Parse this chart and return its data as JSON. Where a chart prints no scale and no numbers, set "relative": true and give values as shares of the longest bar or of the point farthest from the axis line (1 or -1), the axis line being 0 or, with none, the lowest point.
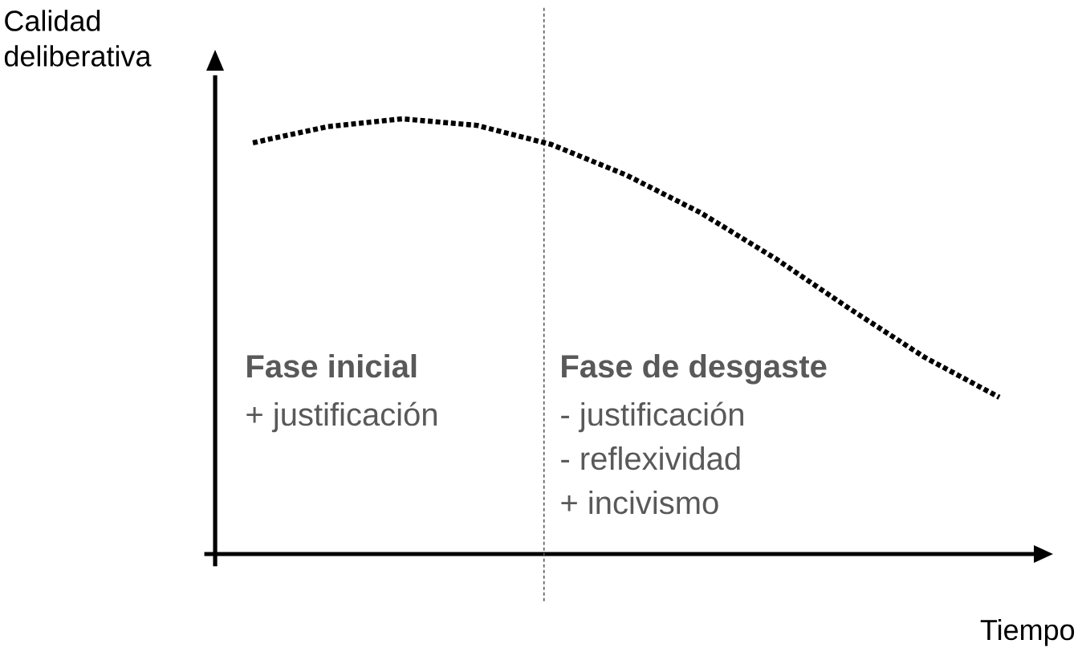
{
  "chart_data": {
    "type": "line",
    "relative": true,
    "ylabel": "Calidad deliberativa",
    "xlabel": "Tiempo",
    "categories": [
      null,
      null,
      null,
      null,
      null,
      null,
      null,
      null,
      null,
      null,
      null
    ],
    "series": [
      {
        "color": "#000000",
        "values": [
          0.945,
          0.982,
          1,
          0.985,
          0.941,
          0.871,
          0.784,
          0.679,
          0.563,
          0.452,
          0.36
        ]
      }
    ],
    "line_style": "dotted",
    "marker": "none",
    "annotations": [
      "Fase inicial",
      "+ justificación",
      "Fase de desgaste",
      "- justificación",
      "- reflexividad",
      "+ incivismo"
    ]
  }
}
